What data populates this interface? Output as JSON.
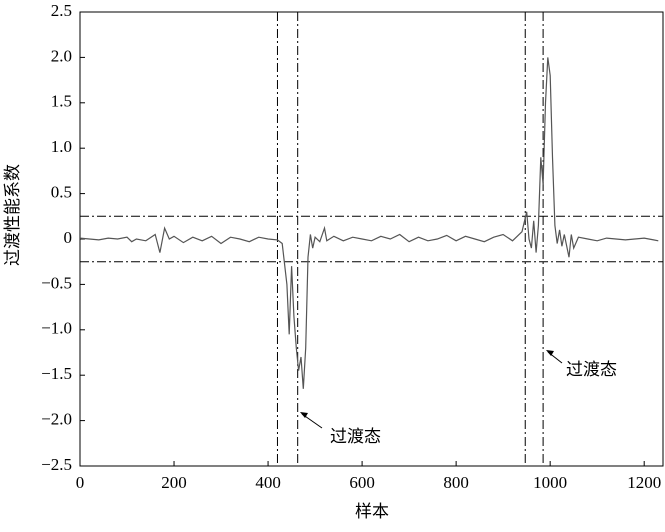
{
  "chart_data": {
    "type": "line",
    "xlabel": "样本",
    "ylabel": "过渡性能系数",
    "xlim": [
      0,
      1240
    ],
    "ylim": [
      -2.5,
      2.5
    ],
    "xticks": [
      0,
      200,
      400,
      600,
      800,
      1000,
      1200
    ],
    "yticks": [
      2.5,
      {
        "value": 2.0,
        "label": "2.0"
      },
      1.5,
      {
        "value": 1.0,
        "label": "1.0"
      },
      0.5,
      0,
      {
        "value": -0.5,
        "label": "−0.5"
      },
      {
        "value": -1.0,
        "label": "−1.0"
      },
      {
        "value": -1.5,
        "label": "−1.5"
      },
      {
        "value": -2.0,
        "label": "−2.0"
      },
      {
        "value": -2.5,
        "label": "−2.5"
      }
    ],
    "hlines": [
      0.25,
      -0.25
    ],
    "vlines": [
      420,
      463,
      947,
      985
    ],
    "annotations": [
      "过渡态",
      "过渡态"
    ],
    "series": [
      {
        "color": "#555555",
        "x": [
          0,
          20,
          40,
          60,
          80,
          100,
          110,
          120,
          140,
          160,
          170,
          180,
          190,
          200,
          220,
          240,
          260,
          280,
          300,
          320,
          340,
          360,
          380,
          400,
          420,
          430,
          440,
          445,
          450,
          455,
          460,
          465,
          470,
          475,
          480,
          485,
          490,
          495,
          500,
          510,
          520,
          525,
          540,
          560,
          580,
          600,
          620,
          640,
          660,
          680,
          700,
          720,
          740,
          760,
          780,
          800,
          820,
          840,
          860,
          880,
          900,
          920,
          940,
          950,
          955,
          960,
          965,
          970,
          975,
          980,
          985,
          990,
          995,
          1000,
          1005,
          1010,
          1015,
          1020,
          1025,
          1030,
          1040,
          1045,
          1050,
          1060,
          1080,
          1100,
          1120,
          1140,
          1160,
          1180,
          1200,
          1220,
          1230
        ],
        "values": [
          0.01,
          0.0,
          -0.01,
          0.01,
          0.0,
          0.02,
          -0.03,
          0.0,
          -0.02,
          0.05,
          -0.15,
          0.12,
          0.0,
          0.03,
          -0.04,
          0.02,
          -0.02,
          0.03,
          -0.05,
          0.02,
          0.0,
          -0.03,
          0.02,
          0.0,
          -0.01,
          -0.05,
          -0.5,
          -1.05,
          -0.3,
          -0.85,
          -1.2,
          -1.45,
          -1.3,
          -1.65,
          -1.2,
          -0.2,
          0.05,
          -0.1,
          0.02,
          -0.03,
          0.12,
          -0.02,
          0.03,
          -0.02,
          0.02,
          0.0,
          -0.02,
          0.03,
          0.0,
          0.05,
          -0.03,
          0.02,
          -0.02,
          0.0,
          0.04,
          -0.02,
          0.03,
          0.0,
          -0.03,
          0.02,
          0.05,
          -0.02,
          0.08,
          0.3,
          0.0,
          -0.1,
          0.2,
          -0.15,
          0.15,
          0.9,
          0.6,
          1.5,
          2.0,
          1.8,
          0.9,
          0.15,
          -0.05,
          0.1,
          -0.08,
          0.05,
          -0.2,
          0.05,
          -0.1,
          0.02,
          0.0,
          -0.02,
          0.01,
          0.0,
          -0.01,
          0.0,
          0.01,
          -0.01,
          -0.02
        ]
      }
    ]
  }
}
